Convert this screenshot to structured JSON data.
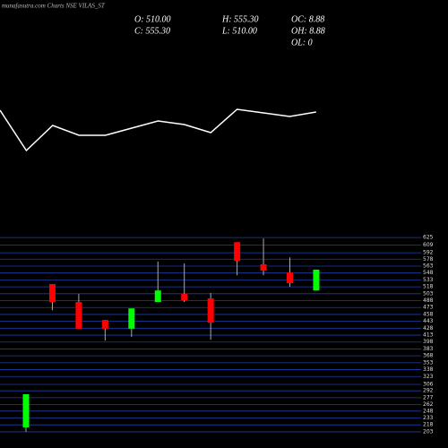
{
  "chart_data": [
    {
      "type": "line",
      "values": [
        77,
        32,
        60,
        49,
        49,
        57,
        65,
        61,
        52,
        78,
        74,
        70,
        75
      ],
      "color": "#ffffff",
      "ylim": [
        0,
        100
      ]
    },
    {
      "type": "candlestick",
      "title": "munafasutra.com Charts NSE VILAS_ST",
      "info": [
        "O: 510.00",
        "H: 555.30",
        "OC: 8.88",
        "C: 555.30",
        "L: 510.00",
        "OH: 8.88",
        "OL: 0"
      ],
      "open": [
        212.6,
        524,
        485,
        446,
        427,
        485,
        502.5,
        493,
        615,
        567,
        549,
        510
      ],
      "high": [
        284.6,
        524,
        502.5,
        446,
        471,
        573,
        569,
        504.5,
        615,
        623,
        582,
        555.3
      ],
      "low": [
        203,
        467,
        427,
        401,
        409,
        485,
        485,
        403,
        543,
        543,
        518,
        510
      ],
      "close": [
        284.6,
        485,
        427,
        427,
        471,
        510,
        489,
        440,
        574.5,
        553,
        526,
        555.3
      ],
      "up_color": "#00ff00",
      "down_color": "#ff0000",
      "grid": true,
      "grid_color": "#1f3ea8",
      "ylim": [
        197,
        635
      ],
      "yticks": [
        625,
        609,
        592,
        578,
        563,
        548,
        533,
        518,
        503,
        488,
        473,
        458,
        443,
        428,
        413,
        398,
        383,
        368,
        353,
        338,
        323,
        306,
        292,
        277,
        262,
        248,
        233,
        218,
        203
      ]
    }
  ]
}
